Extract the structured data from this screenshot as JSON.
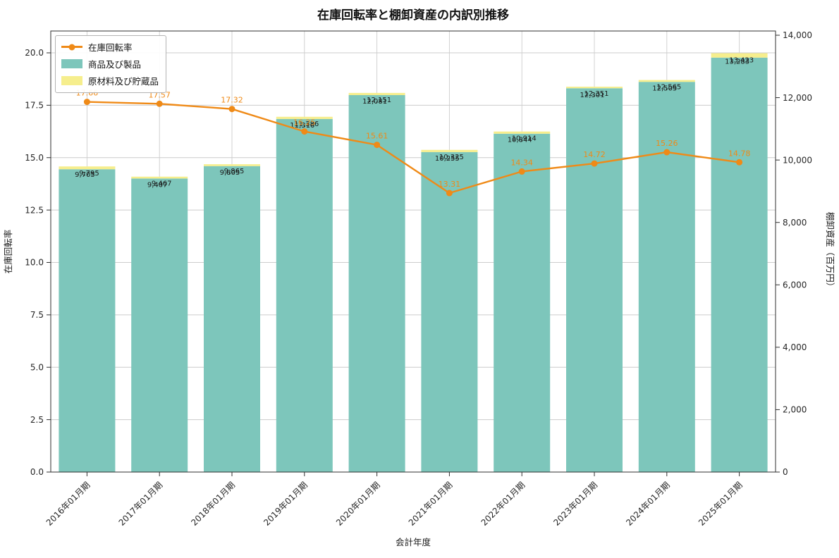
{
  "page": {
    "background": "#ffffff"
  },
  "chart_data": {
    "type": "bar",
    "subtype": "stacked-bars-with-line-overlay",
    "title": "在庫回転率と棚卸資産の内訳別推移",
    "xlabel": "会計年度",
    "ylabel_left": "在庫回転率",
    "ylabel_right": "棚卸資産（百万円）",
    "grid": true,
    "legend_position": "upper-left",
    "legend": [
      "在庫回転率",
      "商品及び製品",
      "原材料及び貯蔵品"
    ],
    "categories": [
      "2016年01月期",
      "2017年01月期",
      "2018年01月期",
      "2019年01月期",
      "2020年01月期",
      "2021年01月期",
      "2022年01月期",
      "2023年01月期",
      "2024年01月期",
      "2025年01月期"
    ],
    "series": [
      {
        "name": "在庫回転率",
        "type": "line",
        "axis": "left",
        "color": "#ef8a17",
        "values": [
          17.66,
          17.57,
          17.32,
          16.25,
          15.61,
          13.31,
          14.34,
          14.72,
          15.26,
          14.78
        ],
        "labels": [
          "17.66",
          "17.57",
          "17.32",
          "16.25",
          "15.61",
          "13.31",
          "14.34",
          "14.72",
          "15.26",
          "14.78"
        ]
      },
      {
        "name": "商品及び製品",
        "type": "bar",
        "stack": "inventory",
        "axis": "right",
        "color": "#7dc6bb",
        "values": [
          9705,
          9407,
          9805,
          11316,
          12081,
          10255,
          10844,
          12301,
          12505,
          13283
        ],
        "labels": [
          "9,705",
          "9,407",
          "9,805",
          "11,316",
          "12,081",
          "10,255",
          "10,844",
          "12,301",
          "12,505",
          "13,283"
        ]
      },
      {
        "name": "原材料及び貯蔵品",
        "type": "bar",
        "stack": "inventory",
        "axis": "right",
        "color": "#f6ee8d",
        "values": [
          90,
          60,
          60,
          70,
          70,
          70,
          70,
          50,
          60,
          140
        ]
      }
    ],
    "stack_total_labels": [
      "9,795",
      "9,467",
      "9,865",
      "11,386",
      "12,151",
      "10,325",
      "10,914",
      "12,351",
      "12,565",
      "13,423"
    ],
    "left_axis": {
      "ticks": [
        0,
        2.5,
        5,
        7.5,
        10,
        12.5,
        15,
        17.5,
        20
      ],
      "tick_labels": [
        "0.0",
        "2.5",
        "5.0",
        "7.5",
        "10.0",
        "12.5",
        "15.0",
        "17.5",
        "20.0"
      ],
      "ylim": [
        0,
        21.0
      ]
    },
    "right_axis": {
      "ticks": [
        0,
        2000,
        4000,
        6000,
        8000,
        10000,
        12000,
        14000
      ],
      "tick_labels": [
        "0",
        "2,000",
        "4,000",
        "6,000",
        "8,000",
        "10,000",
        "12,000",
        "14,000"
      ],
      "ylim": [
        0,
        14140
      ]
    },
    "colors": {
      "gridline": "#cccccc",
      "axis_border": "#2f2f2f",
      "tick_text": "#262626",
      "bar_label_text": "#1a1a1a"
    }
  }
}
